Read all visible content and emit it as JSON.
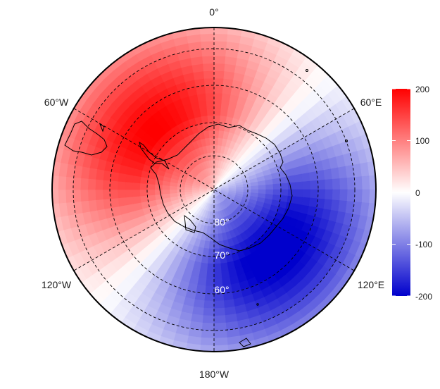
{
  "map": {
    "projection": "south-polar-stereographic",
    "longitude_labels": {
      "top": "0°",
      "upper_left": "60°W",
      "upper_right": "60°E",
      "lower_left": "120°W",
      "lower_right": "120°E",
      "bottom": "180°W"
    },
    "latitude_labels": [
      "80°",
      "70°",
      "60°"
    ],
    "field": {
      "description_type": "zonal-wave-1 anomaly",
      "positive_center_longitude": -45,
      "negative_center_longitude": 165,
      "amplitude": 200
    }
  },
  "colorbar": {
    "ticks": [
      "200",
      "100",
      "0",
      "-100",
      "-200"
    ],
    "min": -200,
    "max": 200,
    "colors": {
      "high": "#ff0000",
      "mid": "#ffffff",
      "low": "#0000cc"
    }
  }
}
